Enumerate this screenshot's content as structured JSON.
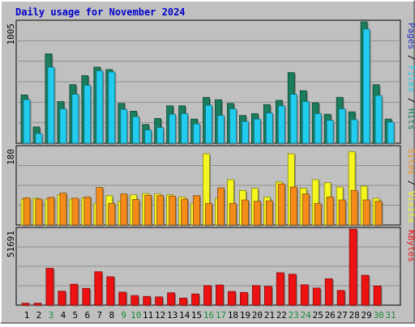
{
  "chart_data": {
    "type": "bar",
    "title": "Daily usage for November 2024",
    "categories": [
      "1",
      "2",
      "3",
      "4",
      "5",
      "6",
      "7",
      "8",
      "9",
      "10",
      "11",
      "12",
      "13",
      "14",
      "15",
      "16",
      "17",
      "18",
      "19",
      "20",
      "21",
      "22",
      "23",
      "24",
      "25",
      "26",
      "27",
      "28",
      "29",
      "30",
      "31"
    ],
    "weekend_days": [
      3,
      9,
      10,
      16,
      17,
      23,
      24,
      30,
      31
    ],
    "panels": [
      {
        "name": "hits-files-pages",
        "max_label": "1005",
        "ylim": [
          0,
          1005
        ],
        "legend": [
          "Pages",
          "Files",
          "Hits"
        ],
        "series": [
          {
            "name": "Hits",
            "color": "#1a7d5c",
            "values": [
              400,
              135,
              740,
              345,
              485,
              560,
              630,
              610,
              330,
              265,
              155,
              205,
              310,
              310,
              200,
              380,
              360,
              330,
              230,
              245,
              320,
              355,
              585,
              435,
              335,
              240,
              380,
              260,
              1005,
              485,
              200
            ]
          },
          {
            "name": "Files",
            "color": "#22ccee",
            "values": [
              360,
              80,
              630,
              285,
              405,
              480,
              600,
              590,
              280,
              220,
              110,
              130,
              240,
              245,
              160,
              315,
              230,
              285,
              180,
              200,
              250,
              310,
              405,
              345,
              245,
              190,
              285,
              195,
              945,
              395,
              175
            ]
          },
          {
            "name": "Pages",
            "color": "#2233bb",
            "values": [
              0,
              0,
              0,
              0,
              0,
              0,
              0,
              0,
              0,
              0,
              0,
              0,
              0,
              0,
              0,
              0,
              0,
              0,
              0,
              0,
              0,
              0,
              0,
              0,
              0,
              0,
              0,
              0,
              0,
              0,
              0
            ]
          }
        ]
      },
      {
        "name": "visits-sites",
        "max_label": "180",
        "ylim": [
          0,
          180
        ],
        "legend": [
          "Sites",
          "Visits"
        ],
        "series": [
          {
            "name": "Visits",
            "color": "#f5f51f",
            "values": [
              60,
              62,
              60,
              70,
              60,
              63,
              50,
              68,
              55,
              70,
              73,
              72,
              70,
              65,
              50,
              165,
              62,
              105,
              80,
              85,
              65,
              100,
              165,
              85,
              105,
              98,
              88,
              170,
              90,
              62,
              0
            ]
          },
          {
            "name": "Sites",
            "color": "#f58c1a",
            "values": [
              63,
              60,
              64,
              74,
              62,
              65,
              87,
              50,
              72,
              59,
              69,
              68,
              67,
              60,
              68,
              50,
              86,
              50,
              58,
              55,
              56,
              95,
              88,
              72,
              50,
              65,
              58,
              80,
              58,
              55,
              0
            ]
          }
        ]
      },
      {
        "name": "kbytes",
        "max_label": "51691",
        "ylim": [
          0,
          51691
        ],
        "legend": [
          "KBytes"
        ],
        "series": [
          {
            "name": "KBytes",
            "color": "#ee1111",
            "values": [
              1300,
              1300,
              25000,
              9500,
              14200,
              11400,
              22700,
              19300,
              8800,
              6500,
              5900,
              5600,
              8400,
              4800,
              7600,
              13300,
              13700,
              9300,
              8600,
              13300,
              12800,
              22000,
              21000,
              13800,
              11600,
              17900,
              10000,
              51691,
              20300,
              13000,
              0
            ]
          }
        ]
      }
    ]
  }
}
